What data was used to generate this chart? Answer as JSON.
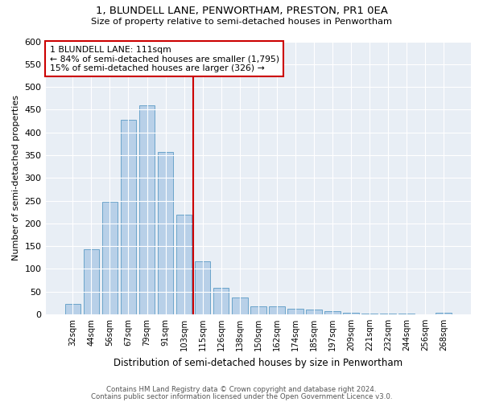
{
  "title1": "1, BLUNDELL LANE, PENWORTHAM, PRESTON, PR1 0EA",
  "title2": "Size of property relative to semi-detached houses in Penwortham",
  "xlabel": "Distribution of semi-detached houses by size in Penwortham",
  "ylabel": "Number of semi-detached properties",
  "categories": [
    "32sqm",
    "44sqm",
    "56sqm",
    "67sqm",
    "79sqm",
    "91sqm",
    "103sqm",
    "115sqm",
    "126sqm",
    "138sqm",
    "150sqm",
    "162sqm",
    "174sqm",
    "185sqm",
    "197sqm",
    "209sqm",
    "221sqm",
    "232sqm",
    "244sqm",
    "256sqm",
    "268sqm"
  ],
  "values": [
    22,
    143,
    247,
    428,
    459,
    357,
    219,
    117,
    58,
    37,
    18,
    17,
    13,
    10,
    7,
    4,
    2,
    2,
    1,
    0,
    4
  ],
  "bar_color": "#b8d0e8",
  "bar_edge_color": "#5a9ac5",
  "vline_index": 7,
  "vline_color": "#cc0000",
  "annotation_line1": "1 BLUNDELL LANE: 111sqm",
  "annotation_line2": "← 84% of semi-detached houses are smaller (1,795)",
  "annotation_line3": "15% of semi-detached houses are larger (326) →",
  "annotation_box_color": "#cc0000",
  "background_color": "#e8eef5",
  "grid_color": "#ffffff",
  "ylim": [
    0,
    600
  ],
  "yticks": [
    0,
    50,
    100,
    150,
    200,
    250,
    300,
    350,
    400,
    450,
    500,
    550,
    600
  ],
  "footer1": "Contains HM Land Registry data © Crown copyright and database right 2024.",
  "footer2": "Contains public sector information licensed under the Open Government Licence v3.0."
}
